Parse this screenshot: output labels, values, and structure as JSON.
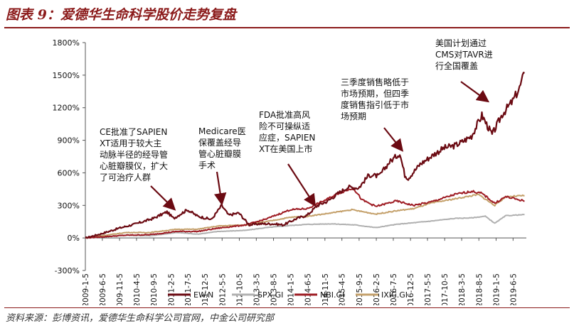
{
  "figure_title": "图表 9：爱德华生命科学股价走势复盘",
  "source": "资料来源：彭博资讯，爱德华生命科学公司官网，中金公司研究部",
  "chart_data": {
    "type": "line",
    "ylim": [
      -300,
      1800
    ],
    "y_ticks": [
      -300,
      0,
      300,
      600,
      900,
      1200,
      1500,
      1800
    ],
    "y_tick_labels": [
      "-300%",
      "0%",
      "300%",
      "600%",
      "900%",
      "1200%",
      "1500%",
      "1800%"
    ],
    "x_ticks": [
      "2009-1-5",
      "2009-6-5",
      "2009-11-5",
      "2010-4-5",
      "2010-9-5",
      "2011-2-5",
      "2011-7-5",
      "2011-12-5",
      "2012-5-5",
      "2012-10-5",
      "2013-3-5",
      "2013-8-5",
      "2014-1-5",
      "2014-6-5",
      "2014-11-5",
      "2015-4-5",
      "2015-9-5",
      "2016-2-5",
      "2016-7-5",
      "2016-12-5",
      "2017-5-5",
      "2017-10-5",
      "2018-3-5",
      "2018-8-5",
      "2019-1-5",
      "2019-6-5"
    ],
    "x_range": [
      "2009-01-05",
      "2019-10-01"
    ],
    "grid": false,
    "legend_position": "bottom",
    "series": [
      {
        "name": "EW.N",
        "color": "#6b0a12",
        "x": [
          "2009-01-05",
          "2009-06-01",
          "2009-11-01",
          "2010-04-01",
          "2010-09-01",
          "2011-01-01",
          "2011-03-01",
          "2011-07-01",
          "2011-10-01",
          "2012-02-01",
          "2012-05-01",
          "2012-07-01",
          "2012-10-01",
          "2013-01-01",
          "2013-04-01",
          "2013-08-01",
          "2013-11-01",
          "2014-03-01",
          "2014-06-01",
          "2014-09-01",
          "2014-12-01",
          "2015-03-01",
          "2015-06-01",
          "2015-09-01",
          "2015-12-01",
          "2016-03-01",
          "2016-06-01",
          "2016-09-01",
          "2016-10-15",
          "2016-11-15",
          "2017-03-01",
          "2017-07-01",
          "2017-10-01",
          "2018-01-01",
          "2018-03-01",
          "2018-06-01",
          "2018-09-01",
          "2018-12-01",
          "2019-03-01",
          "2019-06-01",
          "2019-08-01",
          "2019-09-15"
        ],
        "values": [
          0,
          40,
          90,
          130,
          180,
          240,
          180,
          260,
          200,
          170,
          300,
          210,
          230,
          120,
          130,
          130,
          120,
          180,
          210,
          300,
          340,
          410,
          470,
          460,
          580,
          570,
          700,
          780,
          580,
          550,
          680,
          770,
          830,
          850,
          880,
          940,
          1130,
          950,
          1140,
          1260,
          1380,
          1520
        ]
      },
      {
        "name": "SPX.GI",
        "color": "#b0b0b0",
        "x": [
          "2009-01-05",
          "2009-06-01",
          "2010-01-01",
          "2010-08-01",
          "2011-04-01",
          "2011-10-01",
          "2012-04-01",
          "2012-12-01",
          "2013-06-01",
          "2014-01-01",
          "2014-06-01",
          "2015-01-01",
          "2015-08-01",
          "2016-02-01",
          "2016-08-01",
          "2017-01-01",
          "2017-06-01",
          "2018-01-01",
          "2018-06-01",
          "2018-10-01",
          "2018-12-24",
          "2019-04-01",
          "2019-09-15"
        ],
        "values": [
          0,
          10,
          25,
          20,
          50,
          35,
          60,
          70,
          95,
          115,
          125,
          130,
          120,
          95,
          125,
          140,
          155,
          180,
          185,
          200,
          135,
          205,
          215
        ]
      },
      {
        "name": "NBI.GI",
        "color": "#9e1b23",
        "x": [
          "2009-01-05",
          "2009-06-01",
          "2010-01-01",
          "2010-08-01",
          "2011-04-01",
          "2011-10-01",
          "2012-04-01",
          "2012-12-01",
          "2013-06-01",
          "2014-01-01",
          "2014-06-01",
          "2014-12-01",
          "2015-03-01",
          "2015-07-15",
          "2015-10-01",
          "2016-02-01",
          "2016-08-01",
          "2017-01-01",
          "2017-06-01",
          "2018-01-01",
          "2018-06-01",
          "2018-09-01",
          "2018-12-24",
          "2019-04-01",
          "2019-09-15"
        ],
        "values": [
          0,
          10,
          25,
          30,
          60,
          60,
          90,
          120,
          175,
          260,
          270,
          360,
          410,
          460,
          350,
          290,
          340,
          300,
          330,
          400,
          430,
          410,
          320,
          380,
          340
        ]
      },
      {
        "name": "IXIC.GI",
        "color": "#c4a06a",
        "x": [
          "2009-01-05",
          "2009-06-01",
          "2010-01-01",
          "2010-08-01",
          "2011-04-01",
          "2011-10-01",
          "2012-04-01",
          "2012-12-01",
          "2013-06-01",
          "2014-01-01",
          "2014-06-01",
          "2015-01-01",
          "2015-07-01",
          "2016-02-01",
          "2016-08-01",
          "2017-01-01",
          "2017-06-01",
          "2018-01-01",
          "2018-08-01",
          "2018-12-24",
          "2019-04-01",
          "2019-09-15"
        ],
        "values": [
          0,
          20,
          50,
          50,
          80,
          80,
          110,
          120,
          150,
          190,
          200,
          230,
          260,
          220,
          250,
          270,
          320,
          360,
          400,
          300,
          380,
          390
        ]
      }
    ],
    "annotations": [
      {
        "lines": [
          "CE批准了SAPIEN",
          "XT适用于较大主",
          "动脉半径的经导管",
          "心脏瓣膜仪，扩大",
          "了可治疗人群"
        ],
        "x": "2011-03-01",
        "y": 245
      },
      {
        "lines": [
          "Medicare医",
          "保覆盖经导",
          "管心脏瓣膜",
          "手术"
        ],
        "x": "2012-05-01",
        "y": 300
      },
      {
        "lines": [
          "FDA批准高风",
          "险不可操纵适",
          "应症，SAPIEN",
          "XT在美国上市"
        ],
        "x": "2014-08-01",
        "y": 285
      },
      {
        "lines": [
          "三季度销售略低于",
          "市场预期，但四季",
          "度销售指引低于市",
          "场预期"
        ],
        "x": "2016-09-15",
        "y": 790
      },
      {
        "lines": [
          "美国计划通过",
          "CMS对TAVR进",
          "行全国覆盖"
        ],
        "x": "2018-10-15",
        "y": 1240
      }
    ]
  }
}
